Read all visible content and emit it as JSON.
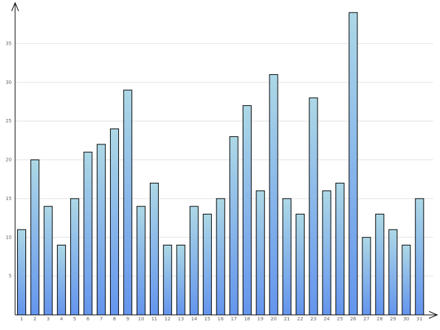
{
  "chart_data": {
    "type": "bar",
    "categories": [
      "1",
      "2",
      "3",
      "4",
      "5",
      "6",
      "7",
      "8",
      "9",
      "10",
      "11",
      "12",
      "13",
      "14",
      "15",
      "16",
      "17",
      "18",
      "19",
      "20",
      "21",
      "22",
      "23",
      "24",
      "25",
      "26",
      "27",
      "28",
      "29",
      "30",
      "31"
    ],
    "values": [
      11,
      20,
      14,
      9,
      15,
      21,
      22,
      24,
      29,
      14,
      17,
      9,
      9,
      14,
      13,
      15,
      23,
      27,
      16,
      31,
      15,
      13,
      28,
      16,
      17,
      39,
      10,
      13,
      11,
      9,
      15
    ],
    "gradient": [
      "#add8e6",
      "#6495ed"
    ],
    "ylim": [
      0,
      40
    ],
    "yticks": [
      5,
      10,
      15,
      20,
      25,
      30,
      35
    ],
    "grid": true
  }
}
